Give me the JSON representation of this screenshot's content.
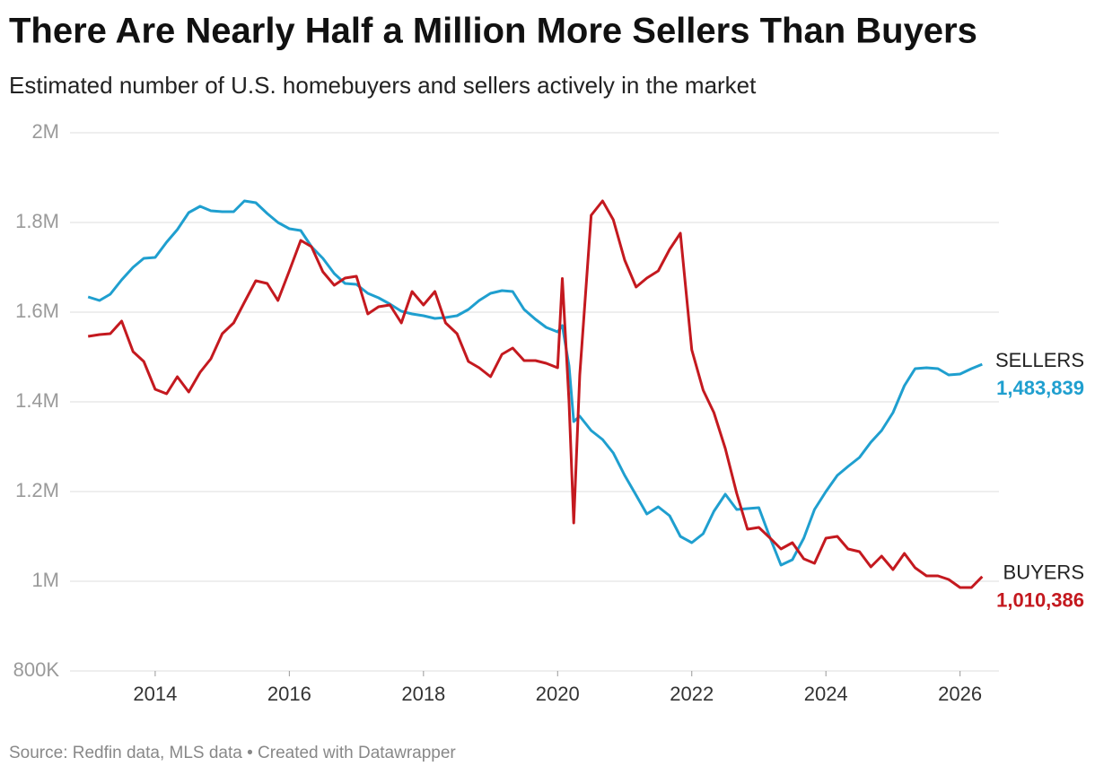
{
  "chart_data": {
    "type": "line",
    "title": "There Are Nearly Half a Million More Sellers Than Buyers",
    "subtitle": "Estimated number of U.S. homebuyers and sellers actively in the market",
    "source": "Source: Redfin data, MLS data • Created with Datawrapper",
    "grid": true,
    "xlim": [
      2012.73,
      2026.58
    ],
    "xticks": [
      2014,
      2016,
      2018,
      2020,
      2022,
      2024,
      2026
    ],
    "ylim": [
      800000,
      2000000
    ],
    "yticks": [
      {
        "value": 800000,
        "label": "800K"
      },
      {
        "value": 1000000,
        "label": "1M"
      },
      {
        "value": 1200000,
        "label": "1.2M"
      },
      {
        "value": 1400000,
        "label": "1.4M"
      },
      {
        "value": 1600000,
        "label": "1.6M"
      },
      {
        "value": 1800000,
        "label": "1.8M"
      },
      {
        "value": 2000000,
        "label": "2M"
      }
    ],
    "x": [
      2013,
      2013.17,
      2013.33,
      2013.5,
      2013.67,
      2013.83,
      2014,
      2014.17,
      2014.33,
      2014.5,
      2014.67,
      2014.83,
      2015,
      2015.17,
      2015.33,
      2015.5,
      2015.67,
      2015.83,
      2016,
      2016.17,
      2016.33,
      2016.5,
      2016.67,
      2016.83,
      2017,
      2017.17,
      2017.33,
      2017.5,
      2017.67,
      2017.83,
      2018,
      2018.17,
      2018.33,
      2018.5,
      2018.67,
      2018.83,
      2019,
      2019.17,
      2019.33,
      2019.5,
      2019.67,
      2019.83,
      2020,
      2020.07,
      2020.17,
      2020.24,
      2020.33,
      2020.5,
      2020.67,
      2020.83,
      2021,
      2021.17,
      2021.33,
      2021.5,
      2021.67,
      2021.83,
      2022,
      2022.17,
      2022.33,
      2022.5,
      2022.67,
      2022.83,
      2023,
      2023.17,
      2023.33,
      2023.5,
      2023.67,
      2023.83,
      2024,
      2024.17,
      2024.33,
      2024.5,
      2024.67,
      2024.83,
      2025,
      2025.17,
      2025.33,
      2025.5,
      2025.67,
      2025.83,
      2026,
      2026.17,
      2026.33
    ],
    "series": [
      {
        "name": "SELLERS",
        "color": "#1f9fcf",
        "values": [
          1634000,
          1626000,
          1640000,
          1672000,
          1700000,
          1720000,
          1722000,
          1756000,
          1784000,
          1822000,
          1836000,
          1826000,
          1824000,
          1824000,
          1848000,
          1844000,
          1820000,
          1800000,
          1786000,
          1782000,
          1746000,
          1720000,
          1686000,
          1664000,
          1662000,
          1642000,
          1632000,
          1618000,
          1602000,
          1596000,
          1592000,
          1586000,
          1588000,
          1592000,
          1606000,
          1626000,
          1642000,
          1648000,
          1646000,
          1606000,
          1584000,
          1566000,
          1556000,
          1570000,
          1480000,
          1356000,
          1368000,
          1336000,
          1316000,
          1286000,
          1236000,
          1192000,
          1150000,
          1166000,
          1146000,
          1100000,
          1086000,
          1106000,
          1156000,
          1194000,
          1160000,
          1162000,
          1164000,
          1096000,
          1036000,
          1048000,
          1096000,
          1160000,
          1200000,
          1236000,
          1256000,
          1276000,
          1310000,
          1336000,
          1376000,
          1436000,
          1474000,
          1476000,
          1474000,
          1460000,
          1462000,
          1474000,
          1483839
        ],
        "value_labels": [
          null,
          null,
          null,
          null,
          null,
          null,
          null,
          null,
          null,
          null,
          null,
          null,
          null,
          null,
          null,
          null,
          null,
          null,
          null,
          null,
          null,
          null,
          null,
          null,
          null,
          null,
          null,
          null,
          null,
          null,
          null,
          null,
          null,
          null,
          null,
          null,
          null,
          null,
          null,
          null,
          null,
          null,
          null,
          null,
          null,
          null,
          null,
          null,
          null,
          null,
          null,
          null,
          null,
          null,
          null,
          null,
          null,
          null,
          null,
          null,
          null,
          null,
          null,
          null,
          null,
          null,
          null,
          null,
          null,
          null,
          null,
          null,
          null,
          null,
          null,
          null,
          null,
          null,
          null,
          null,
          null,
          null,
          "1,483,839"
        ]
      },
      {
        "name": "BUYERS",
        "color": "#c4191f",
        "values": [
          1546000,
          1550000,
          1552000,
          1580000,
          1512000,
          1490000,
          1428000,
          1418000,
          1456000,
          1422000,
          1466000,
          1496000,
          1552000,
          1576000,
          1622000,
          1670000,
          1664000,
          1626000,
          1692000,
          1760000,
          1746000,
          1690000,
          1660000,
          1676000,
          1680000,
          1596000,
          1612000,
          1616000,
          1576000,
          1646000,
          1616000,
          1646000,
          1576000,
          1552000,
          1490000,
          1476000,
          1456000,
          1506000,
          1520000,
          1492000,
          1492000,
          1486000,
          1476000,
          1675000,
          1400000,
          1130000,
          1460000,
          1816000,
          1848000,
          1806000,
          1716000,
          1656000,
          1676000,
          1692000,
          1740000,
          1776000,
          1516000,
          1426000,
          1376000,
          1296000,
          1196000,
          1116000,
          1120000,
          1096000,
          1072000,
          1086000,
          1050000,
          1040000,
          1096000,
          1100000,
          1072000,
          1066000,
          1032000,
          1056000,
          1026000,
          1062000,
          1030000,
          1012000,
          1012000,
          1004000,
          986000,
          986000,
          1010386
        ],
        "value_labels": [
          null,
          null,
          null,
          null,
          null,
          null,
          null,
          null,
          null,
          null,
          null,
          null,
          null,
          null,
          null,
          null,
          null,
          null,
          null,
          null,
          null,
          null,
          null,
          null,
          null,
          null,
          null,
          null,
          null,
          null,
          null,
          null,
          null,
          null,
          null,
          null,
          null,
          null,
          null,
          null,
          null,
          null,
          null,
          null,
          null,
          null,
          null,
          null,
          null,
          null,
          null,
          null,
          null,
          null,
          null,
          null,
          null,
          null,
          null,
          null,
          null,
          null,
          null,
          null,
          null,
          null,
          null,
          null,
          null,
          null,
          null,
          null,
          null,
          null,
          null,
          null,
          null,
          null,
          null,
          null,
          null,
          null,
          "1,010,386"
        ]
      }
    ]
  }
}
